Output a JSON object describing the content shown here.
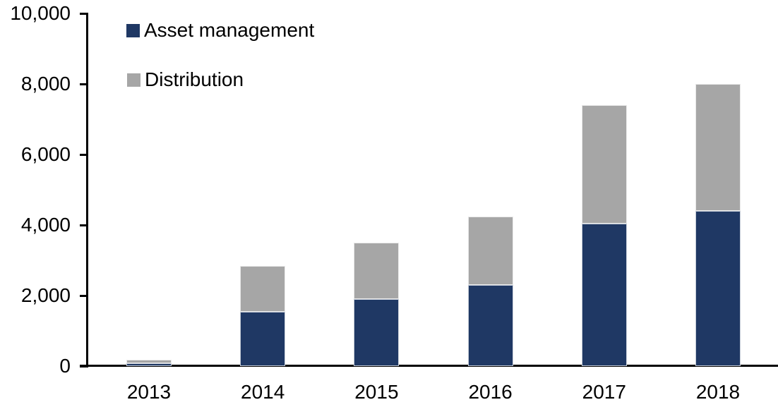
{
  "chart_data": {
    "type": "bar",
    "stacked": true,
    "title": "",
    "xlabel": "",
    "ylabel": "",
    "categories": [
      "2013",
      "2014",
      "2015",
      "2016",
      "2017",
      "2018"
    ],
    "series": [
      {
        "name": "Asset management",
        "color": "#1F3864",
        "values": [
          90,
          1550,
          1900,
          2300,
          4050,
          4400
        ]
      },
      {
        "name": "Distribution",
        "color": "#A6A6A6",
        "values": [
          90,
          1300,
          1600,
          1950,
          3350,
          3600
        ]
      }
    ],
    "totals": [
      180,
      2850,
      3500,
      4250,
      7400,
      8000
    ],
    "ylim": [
      0,
      10000
    ],
    "ytick_values": [
      0,
      2000,
      4000,
      6000,
      8000,
      10000
    ],
    "ytick_labels": [
      "0",
      "2,000",
      "4,000",
      "6,000",
      "8,000",
      "10,000"
    ],
    "grid": false,
    "legend_position": "top-left-inside"
  },
  "colors": {
    "axis": "#000000",
    "text": "#000000",
    "background": "#FFFFFF"
  }
}
